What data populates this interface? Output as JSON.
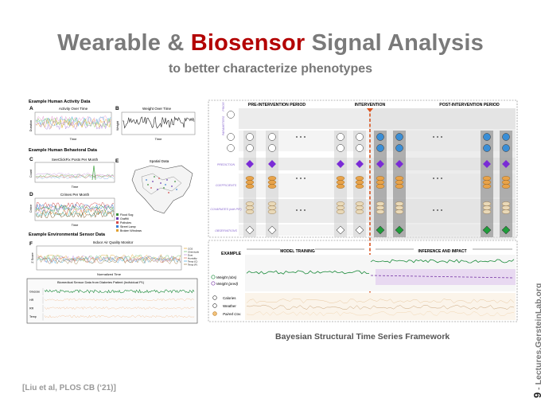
{
  "slide": {
    "title_part1": "Wearable & ",
    "title_highlight": "Biosensor",
    "title_part2": " Signal Analysis",
    "subtitle": "to better characterize phenotypes",
    "citation": "[Liu et al, PLOS CB (‘21)]",
    "side_number": "9",
    "side_text": "- Lectures.GersteinLab.org",
    "caption": "Bayesian Structural Time Series Framework"
  },
  "left_figure": {
    "activity_header": "Example Human Activity Data",
    "panel_a_label": "A",
    "panel_a_title": "Activity Over Time",
    "panel_a_ylabel": "Duration",
    "panel_a_xlabel": "Time",
    "panel_b_label": "B",
    "panel_b_title": "Weight Over Time",
    "panel_b_ylabel": "Weight",
    "panel_b_xlabel": "Time",
    "behavioral_header": "Example Human Behavioral Data",
    "panel_c_label": "C",
    "panel_c_title": "SeeClickFix Posts Per Month",
    "panel_c_ylabel": "Count",
    "panel_c_xlabel": "Time",
    "panel_d_label": "D",
    "panel_d_title": "Crimes Per Month",
    "panel_d_ylabel": "Crime",
    "panel_d_xlabel": "Time",
    "panel_e_label": "E",
    "panel_e_title": "Spatial Data",
    "panel_e_legend": [
      "Flood Sog",
      "Graffiti",
      "Potholes",
      "Street Lamp",
      "Broken Windows"
    ],
    "environmental_header": "Example Environmental Sensor Data",
    "panel_f_label": "F",
    "panel_f_title": "Indoor Air Quality Monitor",
    "panel_f_ylabel": "Z Score",
    "panel_f_xlabel": "Normalized Time",
    "panel_f_legend": [
      "CO2",
      "Chemicals",
      "Dust",
      "Humidity",
      "Temp (C)",
      "Temp (F)"
    ],
    "biomedical_header": "Biomedical Sensor Data from Diabetes Patient (Individual P1)",
    "panel_g_rows": [
      "Glucose",
      "HR",
      "RR",
      "Temp"
    ]
  },
  "right_figure": {
    "period_pre": "PRE-INTERVENTION PERIOD",
    "period_int": "INTERVENTION",
    "period_post": "POST-INTERVENTION PERIOD",
    "row_labels": [
      "PRIOR",
      "PARAMETERS",
      "PREDICTION",
      "COEFFICIENTS",
      "COVARIATES (with PIP)",
      "OBSERVATIONS"
    ],
    "example_label": "EXAMPLE",
    "model_training": "MODEL TRAINING",
    "inference_impact": "INFERENCE AND IMPACT",
    "legend_lines": [
      "Weight (obs)",
      "Weight (pred)"
    ],
    "legend_covariates": [
      "Calories",
      "Weather",
      "Paired Cov."
    ],
    "colors": {
      "pre": "#ffffff",
      "prediction": "#7a2bd6",
      "coefficient": "#e8a34a",
      "covariate": "#e9d9b8",
      "observation": "#1f9d3a",
      "obs_line": "#1a8a3a",
      "pred_line": "#7a3aa8",
      "intervention": "#d9531e",
      "node_blue": "#3a8ed6"
    }
  }
}
